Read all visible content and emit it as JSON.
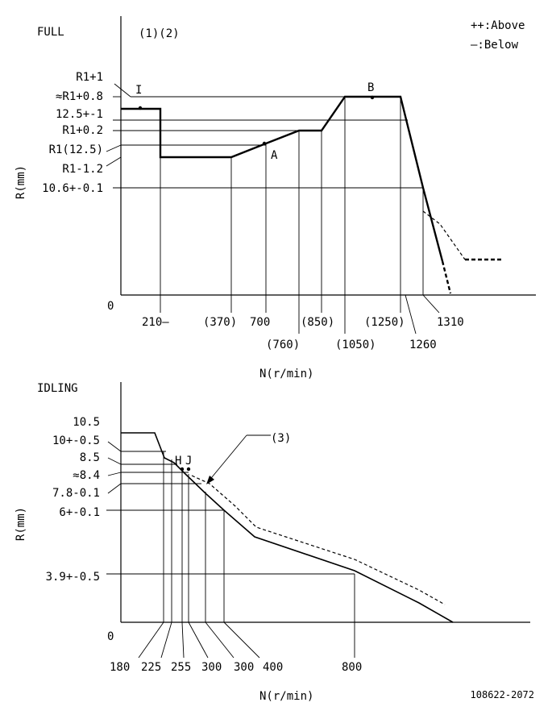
{
  "legend": {
    "above": "++:Above",
    "below": "—:Below"
  },
  "full": {
    "title": "FULL",
    "notes": "(1)(2)",
    "y_axis_label": "R(mm)",
    "x_axis_label": "N(r/min)",
    "origin_label": "0",
    "y_ticks": [
      "R1+1",
      "≈R1+0.8",
      "12.5+-1",
      "R1+0.2",
      "R1(12.5)",
      "R1-1.2",
      "10.6+-0.1"
    ],
    "x_ticks": [
      "210—",
      "(370)",
      "700",
      "(760)",
      "(850)",
      "(1050)",
      "(1250)",
      "1260",
      "1310"
    ],
    "points": [
      "I",
      "A",
      "B"
    ]
  },
  "idling": {
    "title": "IDLING",
    "y_axis_label": "R(mm)",
    "x_axis_label": "N(r/min)",
    "origin_label": "0",
    "y_ticks": [
      "10.5",
      "10+-0.5",
      "8.5",
      "≈8.4",
      "7.8-0.1",
      "6+-0.1",
      "3.9+-0.5"
    ],
    "x_ticks": [
      "180",
      "225",
      "255",
      "300",
      "300",
      "400",
      "800"
    ],
    "points": [
      "H",
      "J"
    ],
    "callout": "(3)"
  },
  "drawing_number": "108622-2072"
}
